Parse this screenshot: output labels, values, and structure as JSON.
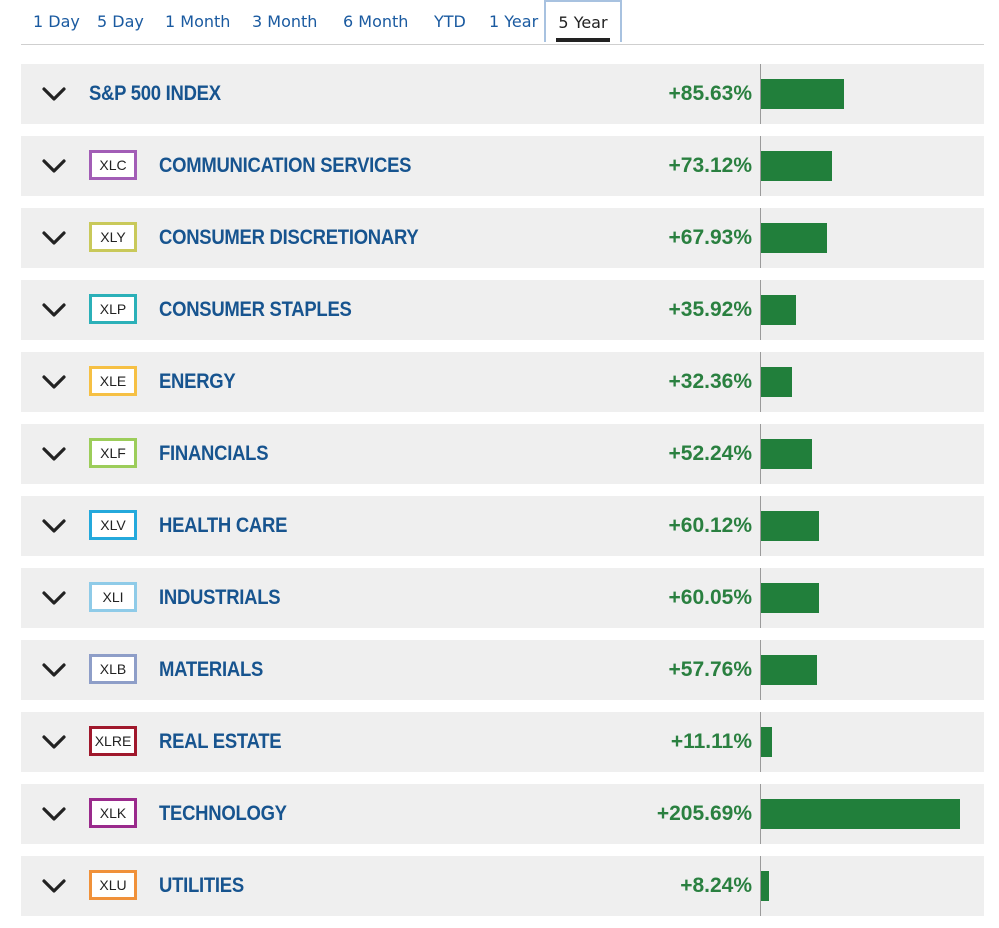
{
  "tabs": {
    "items": [
      "1 Day",
      "5 Day",
      "1 Month",
      "3 Month",
      "6 Month",
      "YTD",
      "1 Year",
      "5 Year"
    ],
    "active": "5 Year"
  },
  "colors": {
    "name_text": "#17548f",
    "percent_text": "#2a8040",
    "bar": "#217f3b",
    "row_background": "#efefef"
  },
  "rows": [
    {
      "ticker": "",
      "name": "S&P 500 INDEX",
      "change": "+85.63%",
      "value": 85.63,
      "badge_color": ""
    },
    {
      "ticker": "XLC",
      "name": "COMMUNICATION SERVICES",
      "change": "+73.12%",
      "value": 73.12,
      "badge_color": "#a25db6"
    },
    {
      "ticker": "XLY",
      "name": "CONSUMER DISCRETIONARY",
      "change": "+67.93%",
      "value": 67.93,
      "badge_color": "#c9c95a"
    },
    {
      "ticker": "XLP",
      "name": "CONSUMER STAPLES",
      "change": "+35.92%",
      "value": 35.92,
      "badge_color": "#2bb0b8"
    },
    {
      "ticker": "XLE",
      "name": "ENERGY",
      "change": "+32.36%",
      "value": 32.36,
      "badge_color": "#f6c044"
    },
    {
      "ticker": "XLF",
      "name": "FINANCIALS",
      "change": "+52.24%",
      "value": 52.24,
      "badge_color": "#9ccd5a"
    },
    {
      "ticker": "XLV",
      "name": "HEALTH CARE",
      "change": "+60.12%",
      "value": 60.12,
      "badge_color": "#24a9dc"
    },
    {
      "ticker": "XLI",
      "name": "INDUSTRIALS",
      "change": "+60.05%",
      "value": 60.05,
      "badge_color": "#8fcbe8"
    },
    {
      "ticker": "XLB",
      "name": "MATERIALS",
      "change": "+57.76%",
      "value": 57.76,
      "badge_color": "#8e9ec8"
    },
    {
      "ticker": "XLRE",
      "name": "REAL ESTATE",
      "change": "+11.11%",
      "value": 11.11,
      "badge_color": "#a0182c"
    },
    {
      "ticker": "XLK",
      "name": "TECHNOLOGY",
      "change": "+205.69%",
      "value": 205.69,
      "badge_color": "#9a2a8c"
    },
    {
      "ticker": "XLU",
      "name": "UTILITIES",
      "change": "+8.24%",
      "value": 8.24,
      "badge_color": "#f0913a"
    }
  ]
}
